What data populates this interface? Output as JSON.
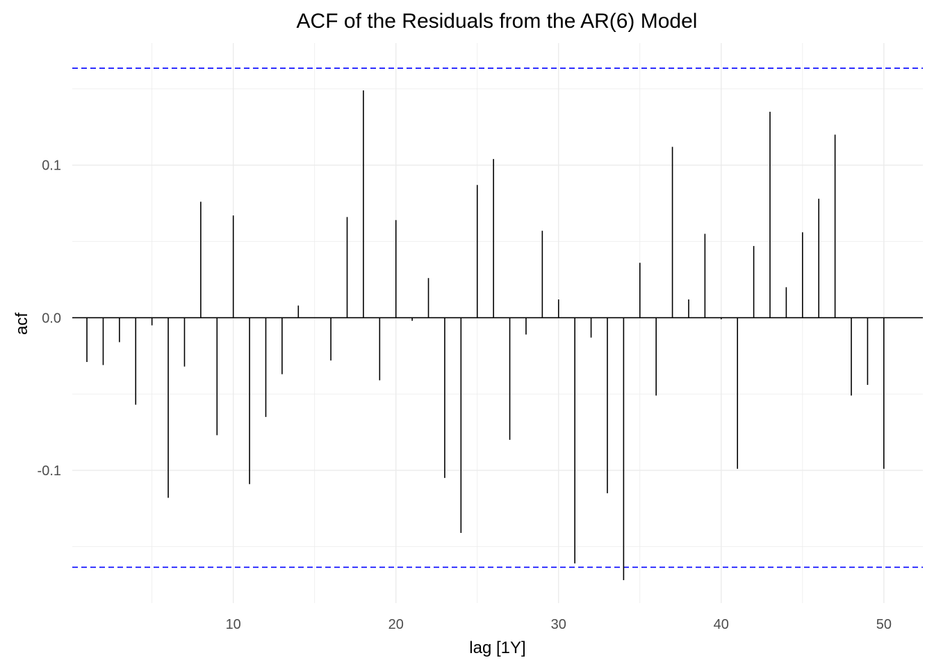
{
  "chart_data": {
    "type": "bar",
    "title": "ACF of the Residuals from the AR(6) Model",
    "xlabel": "lag [1Y]",
    "ylabel": "acf",
    "xlim": [
      0.1,
      52.4
    ],
    "ylim": [
      -0.187,
      0.18
    ],
    "x_ticks": [
      10,
      20,
      30,
      40,
      50
    ],
    "y_ticks": [
      -0.1,
      0.0,
      0.1
    ],
    "y_tick_labels": [
      "-0.1",
      "0.0",
      "0.1"
    ],
    "x": [
      1,
      2,
      3,
      4,
      5,
      6,
      7,
      8,
      9,
      10,
      11,
      12,
      13,
      14,
      15,
      16,
      17,
      18,
      19,
      20,
      21,
      22,
      23,
      24,
      25,
      26,
      27,
      28,
      29,
      30,
      31,
      32,
      33,
      34,
      35,
      36,
      37,
      38,
      39,
      40,
      41,
      42,
      43,
      44,
      45,
      46,
      47,
      48,
      49,
      50
    ],
    "values": [
      -0.029,
      -0.031,
      -0.016,
      -0.057,
      -0.005,
      -0.118,
      -0.032,
      0.076,
      -0.077,
      0.067,
      -0.109,
      -0.065,
      -0.037,
      0.008,
      0.0,
      -0.028,
      0.066,
      0.149,
      -0.041,
      0.064,
      -0.002,
      0.026,
      -0.105,
      -0.141,
      0.087,
      0.104,
      -0.08,
      -0.011,
      0.057,
      0.012,
      -0.161,
      -0.013,
      -0.115,
      -0.172,
      0.036,
      -0.051,
      0.112,
      0.012,
      0.055,
      -0.001,
      -0.099,
      0.047,
      0.135,
      0.02,
      0.056,
      0.078,
      0.12,
      -0.051,
      -0.044,
      -0.099
    ],
    "confidence_bounds": [
      -0.1635,
      0.1635
    ],
    "grid": true,
    "colors": {
      "spike": "#000000",
      "bound": "#0000ff",
      "grid": "#ebebeb",
      "tick": "#4d4d4d"
    }
  }
}
